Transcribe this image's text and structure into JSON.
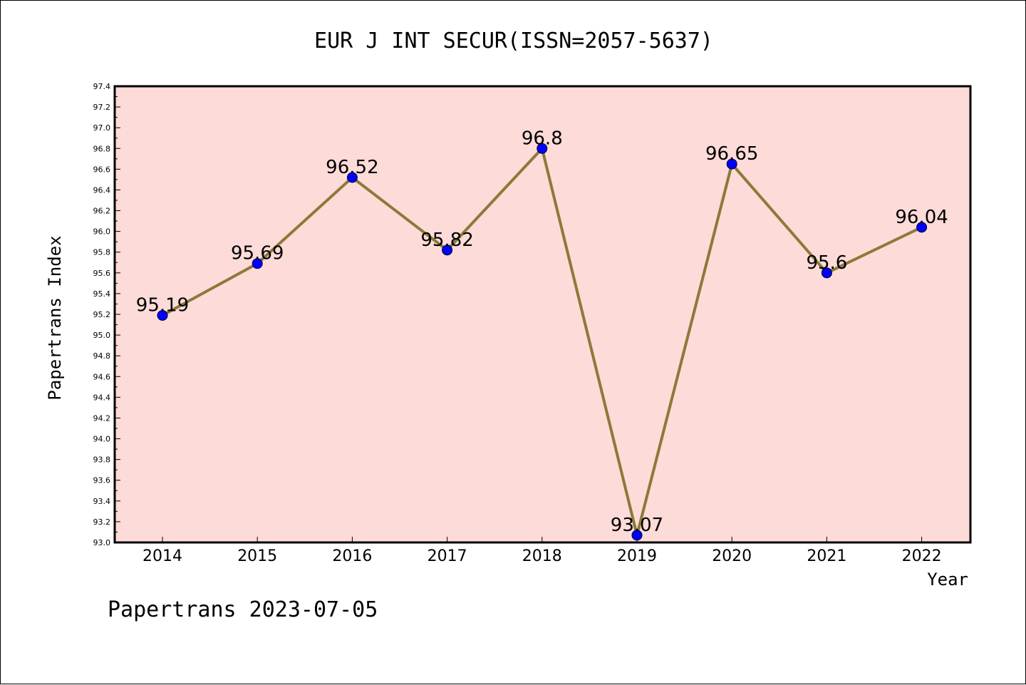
{
  "chart_data": {
    "type": "line",
    "title": "EUR J INT SECUR(ISSN=2057-5637)",
    "xlabel": "Year",
    "ylabel": "Papertrans Index",
    "categories": [
      "2014",
      "2015",
      "2016",
      "2017",
      "2018",
      "2019",
      "2020",
      "2021",
      "2022"
    ],
    "values": [
      95.19,
      95.69,
      96.52,
      95.82,
      96.8,
      93.07,
      96.65,
      95.6,
      96.04
    ],
    "data_labels": [
      "95.19",
      "95.69",
      "96.52",
      "95.82",
      "96.8",
      "93.07",
      "96.65",
      "95.6",
      "96.04"
    ],
    "ylim": [
      93.0,
      97.4
    ],
    "y_ticks": [
      "93.0",
      "93.2",
      "93.4",
      "93.6",
      "93.8",
      "94.0",
      "94.2",
      "94.4",
      "94.6",
      "94.8",
      "95.0",
      "95.2",
      "95.4",
      "95.6",
      "95.8",
      "96.0",
      "96.2",
      "96.4",
      "96.6",
      "96.8",
      "97.0",
      "97.2",
      "97.4"
    ],
    "grid": false,
    "legend": "none",
    "colors": {
      "plot_background": "#fddbd8",
      "line": "#8b7a3a",
      "marker": "#0000ff",
      "axes": "#000000"
    }
  },
  "footer": {
    "text": "Papertrans 2023-07-05"
  }
}
